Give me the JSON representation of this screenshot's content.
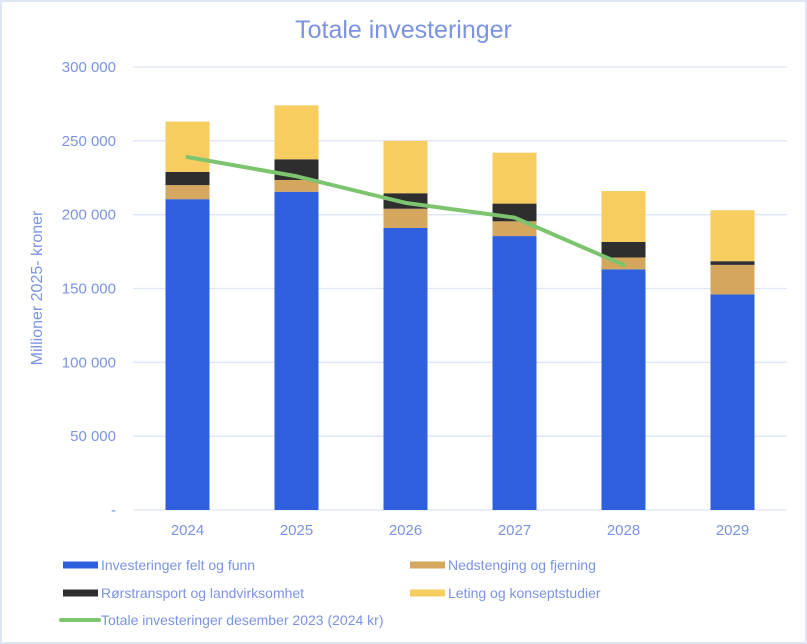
{
  "chart_data": {
    "type": "bar",
    "stacked": true,
    "title": "Totale investeringer",
    "xlabel": "",
    "ylabel": "Millioner 2025- kroner",
    "ylim": [
      0,
      300000
    ],
    "yticks": [
      0,
      50000,
      100000,
      150000,
      200000,
      250000,
      300000
    ],
    "ytick_labels": [
      "-",
      "50 000",
      "100 000",
      "150 000",
      "200 000",
      "250 000",
      "300 000"
    ],
    "grid": true,
    "categories": [
      "2024",
      "2025",
      "2026",
      "2027",
      "2028",
      "2029"
    ],
    "series": [
      {
        "name": "Investeringer felt og funn",
        "type": "bar",
        "color": "#2e5fdc",
        "values": [
          210500,
          215500,
          191000,
          185500,
          163000,
          146000
        ]
      },
      {
        "name": "Nedstenging og fjerning",
        "type": "bar",
        "color": "#d4a65e",
        "values": [
          9500,
          8000,
          13000,
          10000,
          8000,
          20000
        ]
      },
      {
        "name": "Rørstransport og landvirksomhet",
        "type": "bar",
        "color": "#2e2e2e",
        "values": [
          9000,
          14000,
          10500,
          12000,
          10500,
          2500
        ]
      },
      {
        "name": "Leting og konseptstudier",
        "type": "bar",
        "color": "#f6cd5e",
        "values": [
          34000,
          36500,
          35500,
          34500,
          34500,
          34500
        ]
      },
      {
        "name": "Totale investeringer desember 2023 (2024 kr)",
        "type": "line",
        "color": "#7dc46e",
        "values": [
          239000,
          226000,
          208000,
          198000,
          166000,
          null
        ]
      }
    ],
    "legend": {
      "placement": "bottom",
      "order": [
        0,
        1,
        2,
        3,
        4
      ]
    }
  }
}
